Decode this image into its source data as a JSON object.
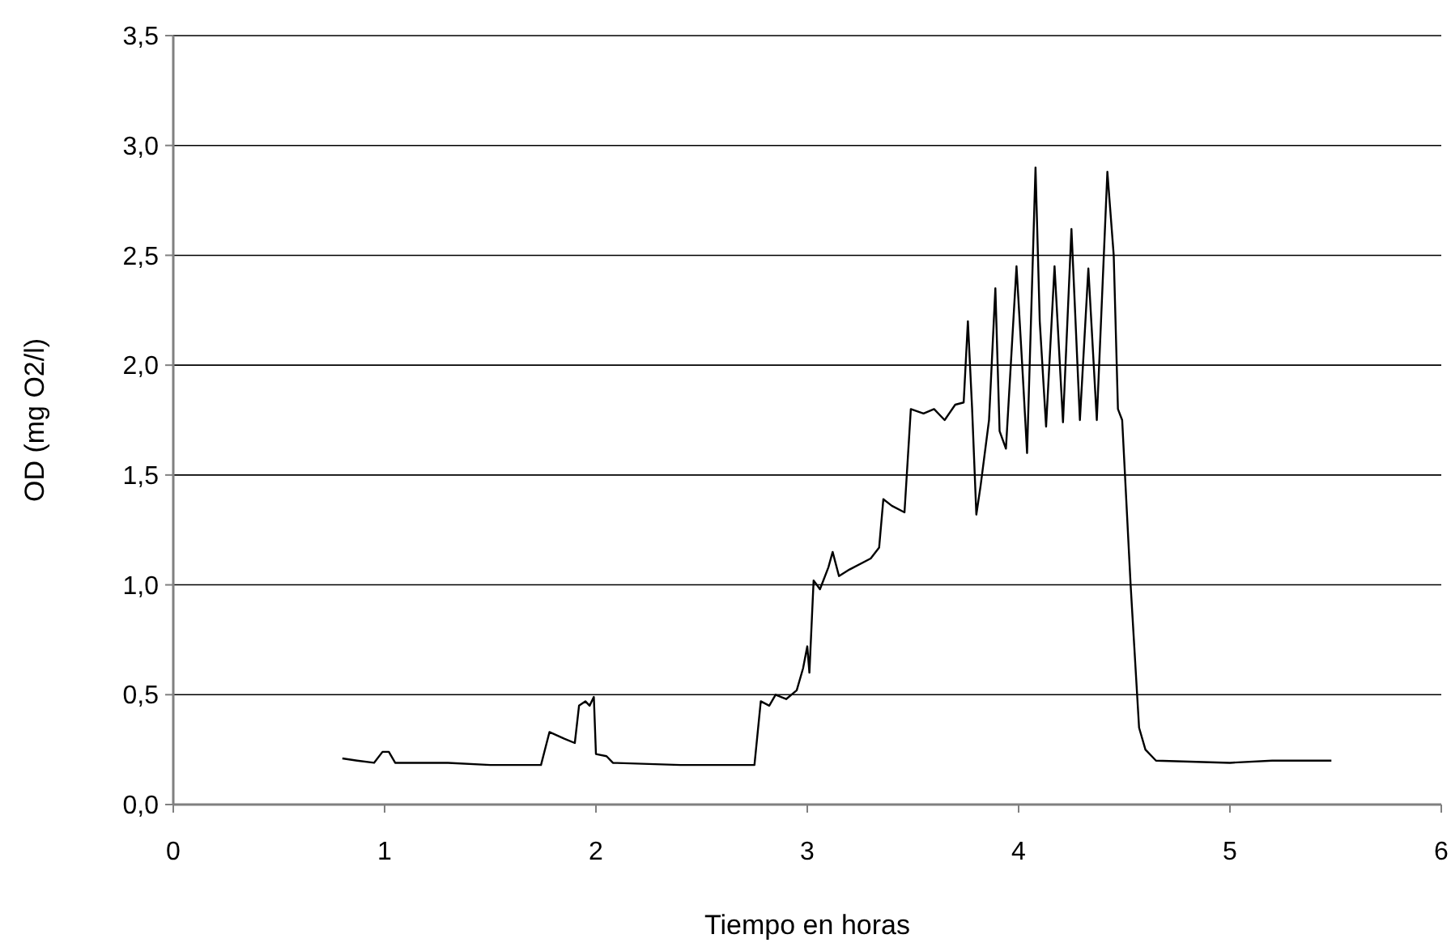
{
  "chart_data": {
    "type": "line",
    "xlabel": "Tiempo en horas",
    "ylabel": "OD (mg O2/l)",
    "xlim": [
      0,
      6
    ],
    "xticks": [
      0,
      1,
      2,
      3,
      4,
      5,
      6
    ],
    "ylim": [
      0,
      3.5
    ],
    "yticks": [
      {
        "value": 0,
        "label": "0,0"
      },
      {
        "value": 0.5,
        "label": "0,5"
      },
      {
        "value": 1,
        "label": "1,0"
      },
      {
        "value": 1.5,
        "label": "1,5"
      },
      {
        "value": 2,
        "label": "2,0"
      },
      {
        "value": 2.5,
        "label": "2,5"
      },
      {
        "value": 3,
        "label": "3,0"
      },
      {
        "value": 3.5,
        "label": "3,5"
      }
    ],
    "grid": "y",
    "marker": "none",
    "line_style": "solid",
    "series": [
      {
        "color": "#000000",
        "x": [
          0.8,
          0.87,
          0.95,
          0.99,
          1.02,
          1.05,
          1.3,
          1.5,
          1.74,
          1.78,
          1.85,
          1.9,
          1.92,
          1.95,
          1.97,
          1.99,
          2.0,
          2.05,
          2.08,
          2.4,
          2.75,
          2.78,
          2.82,
          2.85,
          2.9,
          2.95,
          2.98,
          3.0,
          3.01,
          3.03,
          3.06,
          3.1,
          3.12,
          3.15,
          3.2,
          3.3,
          3.34,
          3.36,
          3.4,
          3.46,
          3.49,
          3.55,
          3.6,
          3.65,
          3.7,
          3.74,
          3.76,
          3.78,
          3.8,
          3.82,
          3.86,
          3.89,
          3.91,
          3.94,
          3.99,
          4.02,
          4.04,
          4.08,
          4.1,
          4.13,
          4.17,
          4.21,
          4.25,
          4.29,
          4.33,
          4.37,
          4.42,
          4.45,
          4.47,
          4.49,
          4.53,
          4.57,
          4.6,
          4.65,
          5.0,
          5.2,
          5.48
        ],
        "values": [
          0.21,
          0.2,
          0.19,
          0.24,
          0.24,
          0.19,
          0.19,
          0.18,
          0.18,
          0.33,
          0.3,
          0.28,
          0.45,
          0.47,
          0.45,
          0.49,
          0.23,
          0.22,
          0.19,
          0.18,
          0.18,
          0.47,
          0.45,
          0.5,
          0.48,
          0.52,
          0.62,
          0.72,
          0.6,
          1.02,
          0.98,
          1.08,
          1.15,
          1.04,
          1.07,
          1.12,
          1.17,
          1.39,
          1.36,
          1.33,
          1.8,
          1.78,
          1.8,
          1.75,
          1.82,
          1.83,
          2.2,
          1.8,
          1.32,
          1.45,
          1.75,
          2.35,
          1.7,
          1.62,
          2.45,
          1.95,
          1.6,
          2.9,
          2.2,
          1.72,
          2.45,
          1.74,
          2.62,
          1.75,
          2.44,
          1.75,
          2.88,
          2.5,
          1.8,
          1.75,
          1.0,
          0.35,
          0.25,
          0.2,
          0.19,
          0.2,
          0.2
        ]
      }
    ]
  }
}
